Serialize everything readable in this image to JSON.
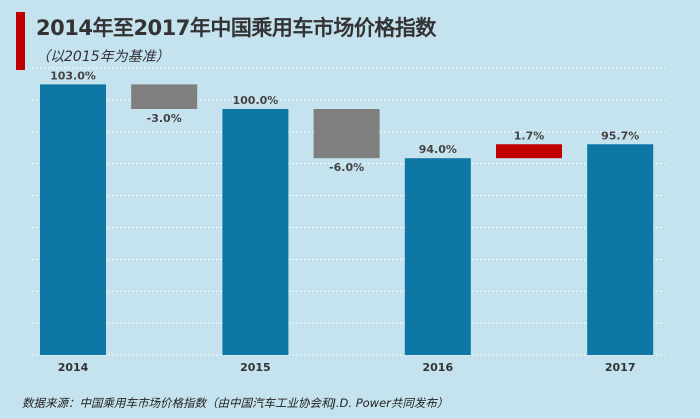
{
  "header": {
    "title": "2014年至2017年中国乘用车市场价格指数",
    "subtitle": "（以2015年为基准）"
  },
  "footer": {
    "source": "数据来源：中国乘用车市场价格指数（由中国汽车工业协会和J.D. Power共同发布）"
  },
  "colors": {
    "background": "#c5e3ef",
    "total": "#0e77a6",
    "decrease": "#7f7f7f",
    "increase": "#c00000",
    "accent": "#c00000"
  },
  "chart_data": {
    "type": "bar",
    "subtype": "waterfall",
    "title": "2014年至2017年中国乘用车市场价格指数",
    "subtitle": "（以2015年为基准）",
    "xlabel": "",
    "ylabel": "",
    "ylim": [
      70,
      105
    ],
    "grid": true,
    "legend": "none",
    "categories": [
      "2014",
      "",
      "2015",
      "",
      "2016",
      "",
      "2017"
    ],
    "bars": [
      {
        "category": "2014",
        "kind": "total",
        "base": 70,
        "value": 103.0,
        "label": "103.0%"
      },
      {
        "category": "",
        "kind": "decrease",
        "from": 103.0,
        "to": 100.0,
        "label": "-3.0%"
      },
      {
        "category": "2015",
        "kind": "total",
        "base": 70,
        "value": 100.0,
        "label": "100.0%"
      },
      {
        "category": "",
        "kind": "decrease",
        "from": 100.0,
        "to": 94.0,
        "label": "-6.0%"
      },
      {
        "category": "2016",
        "kind": "total",
        "base": 70,
        "value": 94.0,
        "label": "94.0%"
      },
      {
        "category": "",
        "kind": "increase",
        "from": 94.0,
        "to": 95.7,
        "label": "1.7%"
      },
      {
        "category": "2017",
        "kind": "total",
        "base": 70,
        "value": 95.7,
        "label": "95.7%"
      }
    ]
  }
}
